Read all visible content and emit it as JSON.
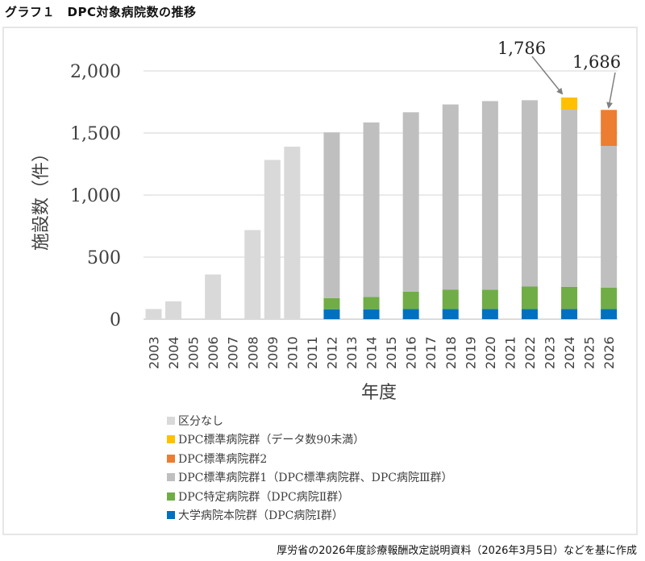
{
  "title": "グラフ１　DPC対象病院数の推移",
  "source_note": "厚労省の2026年度診療報酬改定説明資料（2026年3月5日）などを基に作成",
  "chart_data": {
    "type": "bar",
    "stacked": true,
    "title": "",
    "xlabel": "年度",
    "ylabel": "施設数（件）",
    "ylim": [
      0,
      2000
    ],
    "yticks": [
      0,
      500,
      1000,
      1500,
      2000
    ],
    "ytick_labels": [
      "0",
      "500",
      "1,000",
      "1,500",
      "2,000"
    ],
    "grid": true,
    "legend_position": "bottom-left",
    "categories": [
      "2003",
      "2004",
      "2005",
      "2006",
      "2007",
      "2008",
      "2009",
      "2010",
      "2011",
      "2012",
      "2013",
      "2014",
      "2015",
      "2016",
      "2017",
      "2018",
      "2019",
      "2020",
      "2021",
      "2022",
      "2023",
      "2024",
      "2025",
      "2026"
    ],
    "series": [
      {
        "key": "univ",
        "name": "大学病院本院群（DPC病院Ⅰ群）",
        "color": "#0070C0",
        "values": [
          0,
          0,
          0,
          0,
          0,
          0,
          0,
          0,
          0,
          80,
          0,
          80,
          0,
          81,
          0,
          82,
          0,
          82,
          0,
          82,
          0,
          82,
          0,
          82
        ]
      },
      {
        "key": "special",
        "name": "DPC特定病院群（DPC病院Ⅱ群）",
        "color": "#70AD47",
        "values": [
          0,
          0,
          0,
          0,
          0,
          0,
          0,
          0,
          0,
          90,
          0,
          99,
          0,
          140,
          0,
          155,
          0,
          156,
          0,
          181,
          0,
          179,
          0,
          173
        ]
      },
      {
        "key": "std1",
        "name": "DPC標準病院群1（DPC標準病院群、DPC病院Ⅲ群）",
        "color": "#BFBFBF",
        "values": [
          0,
          0,
          0,
          0,
          0,
          0,
          0,
          0,
          0,
          1335,
          0,
          1406,
          0,
          1446,
          0,
          1493,
          0,
          1519,
          0,
          1501,
          0,
          1427,
          0,
          1141
        ]
      },
      {
        "key": "std2",
        "name": "DPC標準病院群2",
        "color": "#ED7D31",
        "values": [
          0,
          0,
          0,
          0,
          0,
          0,
          0,
          0,
          0,
          0,
          0,
          0,
          0,
          0,
          0,
          0,
          0,
          0,
          0,
          0,
          0,
          0,
          0,
          290
        ]
      },
      {
        "key": "under90",
        "name": "DPC標準病院群（データ数90未満）",
        "color": "#FFC000",
        "values": [
          0,
          0,
          0,
          0,
          0,
          0,
          0,
          0,
          0,
          0,
          0,
          0,
          0,
          0,
          0,
          0,
          0,
          0,
          0,
          0,
          0,
          98,
          0,
          0
        ]
      },
      {
        "key": "none",
        "name": "区分なし",
        "color": "#D9D9D9",
        "values": [
          82,
          144,
          0,
          360,
          0,
          718,
          1283,
          1390,
          0,
          0,
          0,
          0,
          0,
          0,
          0,
          0,
          0,
          0,
          0,
          0,
          0,
          0,
          0,
          0
        ]
      }
    ],
    "legend_order": [
      "none",
      "under90",
      "std2",
      "std1",
      "special",
      "univ"
    ],
    "annotations": [
      {
        "category": "2024",
        "text": "1,786",
        "value": 1786
      },
      {
        "category": "2026",
        "text": "1,686",
        "value": 1686
      }
    ]
  }
}
